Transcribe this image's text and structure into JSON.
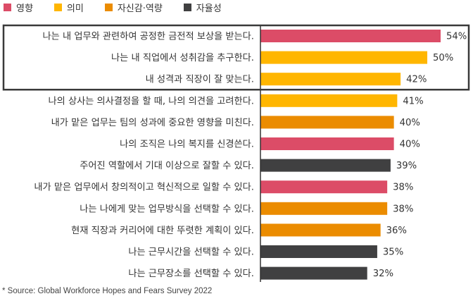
{
  "legend": [
    {
      "name": "영향",
      "color": "#dc4c67"
    },
    {
      "name": "의미",
      "color": "#ffb600"
    },
    {
      "name": "자신감·역량",
      "color": "#eb8c00"
    },
    {
      "name": "자율성",
      "color": "#404041"
    }
  ],
  "source": "* Source: Global Workforce Hopes and Fears Survey 2022",
  "chart_data": {
    "type": "bar",
    "orientation": "horizontal",
    "title": "",
    "xlabel": "",
    "ylabel": "",
    "xlim": [
      0,
      60
    ],
    "grid": false,
    "legend_position": "top-left",
    "highlighted_rows": [
      0,
      1,
      2
    ],
    "categories": [
      "나는 내 업무와 관련하여 공정한 금전적 보상을 받는다.",
      "나는 내 직업에서 성취감을 추구한다.",
      "내 성격과 직장이 잘 맞는다.",
      "나의 상사는 의사결정을 할 때, 나의 의견을 고려한다.",
      "내가 맡은 업무는 팀의 성과에 중요한 영향을 미친다.",
      "나의 조직은 나의 복지를 신경쓴다.",
      "주어진 역할에서 기대 이상으로 잘할 수 있다.",
      "내가 맡은 업무에서 창의적이고 혁신적으로 일할 수 있다.",
      "나는 나에게 맞는 업무방식을 선택할 수 있다.",
      "현재 직장과 커리어에 대한 뚜렷한 계획이 있다.",
      "나는 근무시간을 선택할 수 있다.",
      "나는 근무장소를 선택할 수 있다."
    ],
    "values": [
      54,
      50,
      42,
      41,
      40,
      40,
      39,
      38,
      38,
      36,
      35,
      32
    ],
    "value_labels": [
      "54%",
      "50%",
      "42%",
      "41%",
      "40%",
      "40%",
      "39%",
      "38%",
      "38%",
      "36%",
      "35%",
      "32%"
    ],
    "groups": [
      "영향",
      "의미",
      "의미",
      "의미",
      "자신감·역량",
      "영향",
      "자율성",
      "영향",
      "자신감·역량",
      "자신감·역량",
      "자율성",
      "자율성"
    ]
  }
}
